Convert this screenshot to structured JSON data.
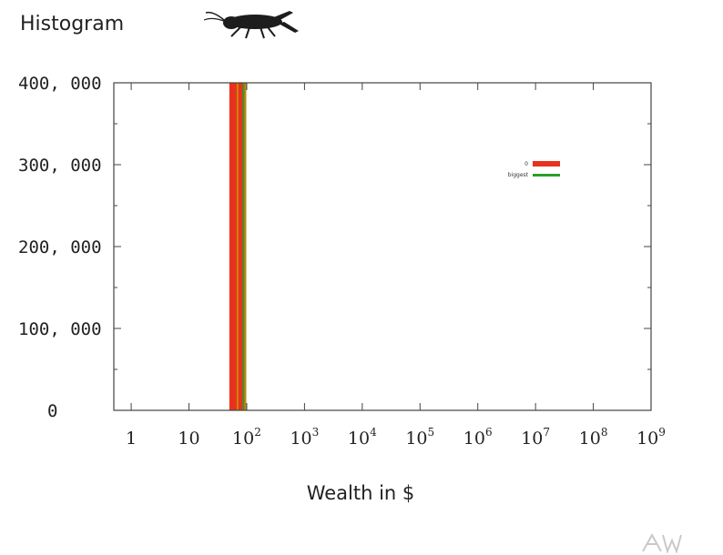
{
  "slide": {
    "title": "Histogram"
  },
  "icons": {
    "decoration": "cricket-icon",
    "watermark": "aw-logo-icon"
  },
  "chart_data": {
    "type": "bar",
    "title": "",
    "xlabel": "Wealth in $",
    "ylabel": "",
    "xscale": "log",
    "xlim": [
      0.5,
      1000000000
    ],
    "ylim": [
      0,
      400000
    ],
    "yticks": [
      {
        "value": 0,
        "label": "0"
      },
      {
        "value": 100000,
        "label": "100, 000"
      },
      {
        "value": 200000,
        "label": "200, 000"
      },
      {
        "value": 300000,
        "label": "300, 000"
      },
      {
        "value": 400000,
        "label": "400, 000"
      }
    ],
    "xticks": [
      {
        "value": 1,
        "base": "1",
        "exp": ""
      },
      {
        "value": 10,
        "base": "10",
        "exp": ""
      },
      {
        "value": 100,
        "base": "10",
        "exp": "2"
      },
      {
        "value": 1000,
        "base": "10",
        "exp": "3"
      },
      {
        "value": 10000,
        "base": "10",
        "exp": "4"
      },
      {
        "value": 100000,
        "base": "10",
        "exp": "5"
      },
      {
        "value": 1000000,
        "base": "10",
        "exp": "6"
      },
      {
        "value": 10000000,
        "base": "10",
        "exp": "7"
      },
      {
        "value": 100000000,
        "base": "10",
        "exp": "8"
      },
      {
        "value": 1000000000,
        "base": "10",
        "exp": "9"
      }
    ],
    "grid": false,
    "legend_position": "top-right",
    "series": [
      {
        "name": "0",
        "color": "#e8321e",
        "bins": [
          {
            "x0": 50,
            "x1": 85,
            "value": 400000
          }
        ]
      },
      {
        "name": "biggest",
        "color": "#2aa02a",
        "bins": [
          {
            "x0": 85,
            "x1": 92,
            "value": 400000
          }
        ]
      }
    ],
    "overlay_color": "#c8860a"
  }
}
